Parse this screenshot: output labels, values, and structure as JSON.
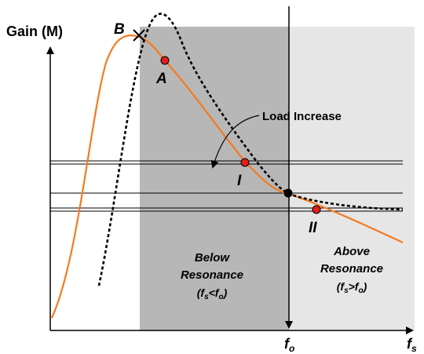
{
  "axes": {
    "y_label": "Gain (M)",
    "x_label_main": "f",
    "x_label_sub": "s",
    "f0_main": "f",
    "f0_sub": "o"
  },
  "regions": {
    "below": {
      "line1": "Below",
      "line2": "Resonance",
      "cond_open": "(f",
      "cond_sub1": "s",
      "cond_mid": "<f",
      "cond_sub2": "o",
      "cond_close": ")"
    },
    "above": {
      "line1": "Above",
      "line2": "Resonance",
      "cond_open": "(f",
      "cond_sub1": "s",
      "cond_mid": ">f",
      "cond_sub2": "o",
      "cond_close": ")"
    }
  },
  "annotations": {
    "load_increase": "Load Increase"
  },
  "points": {
    "A": "A",
    "B": "B",
    "I": "I",
    "II": "II"
  },
  "colors": {
    "curve": "#F47A20",
    "dashed": "#000000",
    "below_region": "#B7B7B7",
    "above_region": "#E6E6E6",
    "marker": "#E0201B"
  }
}
